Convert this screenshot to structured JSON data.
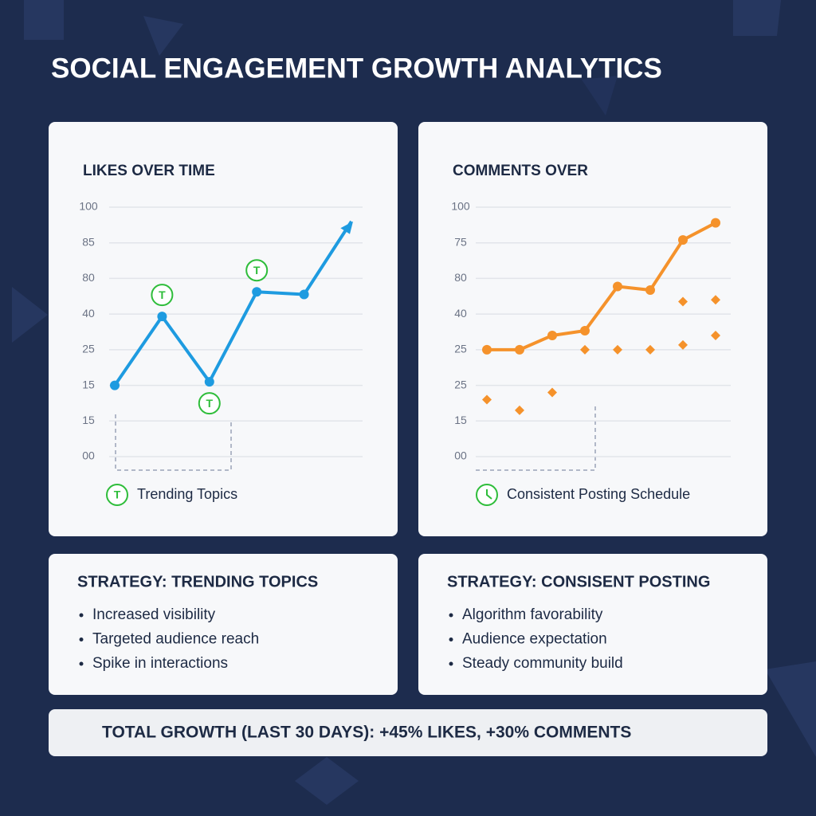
{
  "title": "SOCIAL ENGAGEMENT GROWTH ANALYTICS",
  "chart_data": [
    {
      "type": "line",
      "title": "LIKES OVER TIME",
      "ylim": [
        0,
        100
      ],
      "yticks": [
        100,
        85,
        80,
        40,
        25,
        15,
        15,
        {
          "value": 0,
          "label": "00"
        }
      ],
      "grid": true,
      "arrow": true,
      "series": [
        {
          "color": "#1e9be0",
          "style": "line",
          "values": [
            15,
            39,
            16,
            65,
            62,
            94
          ]
        }
      ],
      "annotations": [
        {
          "index": 1,
          "label": "T"
        },
        {
          "index": 2,
          "label": "T"
        },
        {
          "index": 3,
          "label": "T"
        }
      ],
      "legend": {
        "icon": "T",
        "label": "Trending Topics",
        "color": "#2ebd3a"
      }
    },
    {
      "type": "line",
      "title": "COMMENTS OVER",
      "ylim": [
        0,
        100
      ],
      "yticks": [
        100,
        75,
        80,
        40,
        25,
        25,
        15,
        {
          "value": 0,
          "label": "00"
        }
      ],
      "grid": true,
      "arrow": false,
      "series": [
        {
          "color": "#f5922b",
          "style": "line",
          "values": [
            25,
            25,
            31,
            33,
            71,
            67,
            77,
            89
          ]
        },
        {
          "color": "#f5922b",
          "style": "diamond",
          "values": [
            21,
            18,
            23,
            25,
            25,
            25,
            27,
            31
          ]
        },
        {
          "color": "#f5922b",
          "style": "diamond",
          "values": [
            null,
            null,
            null,
            null,
            null,
            null,
            54,
            56
          ]
        }
      ],
      "legend": {
        "icon": "clock",
        "label": "Consistent Posting Schedule",
        "color": "#2ebd3a"
      }
    }
  ],
  "strategies": [
    {
      "title": "STRATEGY: TRENDING TOPICS",
      "items": [
        "Increased visibility",
        "Targeted audience reach",
        "Spike in interactions"
      ]
    },
    {
      "title": "STRATEGY: CONSISENT POSTING",
      "items": [
        "Algorithm favorability",
        "Audience expectation",
        "Steady community build"
      ]
    }
  ],
  "summary": "TOTAL GROWTH (LAST 30 DAYS): +45% LIKES, +30% COMMENTS"
}
